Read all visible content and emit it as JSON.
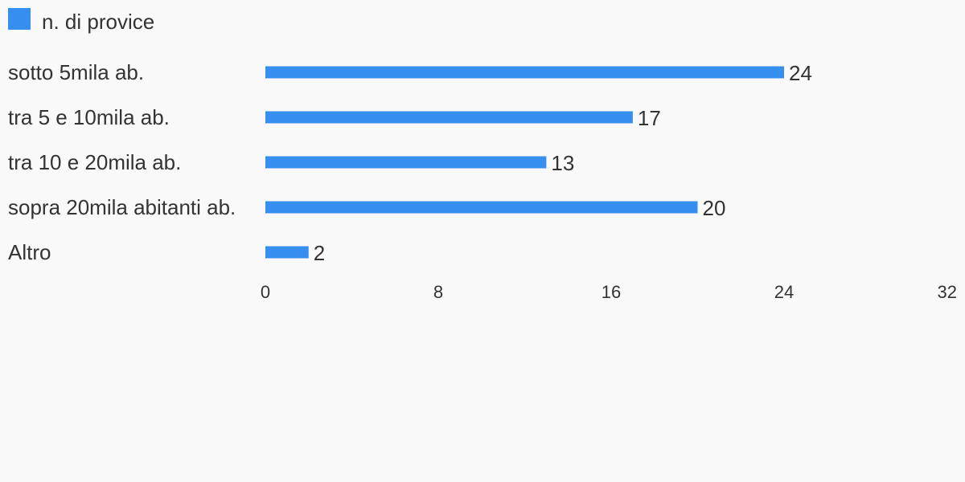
{
  "legend": {
    "label": "n. di provice",
    "color": "#368eef"
  },
  "chart_data": {
    "type": "bar",
    "orientation": "horizontal",
    "categories": [
      "sotto 5mila ab.",
      "tra 5 e 10mila ab.",
      "tra 10 e 20mila ab.",
      "sopra 20mila abitanti ab.",
      "Altro"
    ],
    "series": [
      {
        "name": "n. di provice",
        "values": [
          24,
          17,
          13,
          20,
          2
        ],
        "color": "#368eef"
      }
    ],
    "xlim": [
      0,
      32
    ],
    "x_ticks": [
      0,
      8,
      16,
      24,
      32
    ],
    "legend_position": "top-left",
    "grid": false,
    "data_labels": true
  }
}
